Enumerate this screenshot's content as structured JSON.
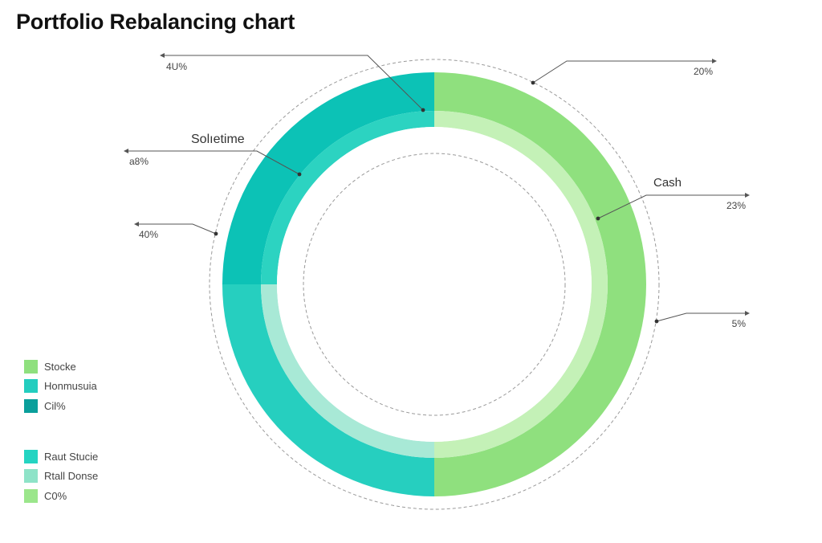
{
  "title": "Portfolio Rebalancing chart",
  "chart_data": {
    "type": "pie",
    "title": "Portfolio Rebalancing chart",
    "style": "donut",
    "outer_ring": {
      "slices": [
        {
          "value": 50,
          "color": "#8fe07e"
        },
        {
          "value": 25,
          "color": "#26cfbf"
        },
        {
          "value": 25,
          "color": "#0cc2b6"
        }
      ]
    },
    "inner_ring": {
      "slices": [
        {
          "value": 50,
          "color": "#c4f1b7"
        },
        {
          "value": 25,
          "color": "#a8e9d6"
        },
        {
          "value": 25,
          "color": "#2cd3c1"
        }
      ]
    },
    "callouts": [
      {
        "id": "left-top",
        "text": "4U%"
      },
      {
        "id": "left-mid",
        "text": "a8%"
      },
      {
        "id": "left-low",
        "text": "40%"
      },
      {
        "id": "right-top",
        "text": "20%"
      },
      {
        "id": "right-mid",
        "text": "23%"
      },
      {
        "id": "right-low",
        "text": "5%"
      }
    ],
    "annotations": [
      {
        "id": "soltime",
        "text": "Solıetime"
      },
      {
        "id": "cash",
        "text": "Cash"
      }
    ],
    "legend": {
      "position": "bottom-left",
      "groups": [
        [
          {
            "label": "Stocke",
            "color": "#8fe07e"
          },
          {
            "label": "Honmusuia",
            "color": "#23cdbf"
          },
          {
            "label": "Cil%",
            "color": "#0a9f9b"
          }
        ],
        [
          {
            "label": "Raut Stucie",
            "color": "#24d4c2"
          },
          {
            "label": "Rtall Donse",
            "color": "#8ee3c8"
          },
          {
            "label": "C0%",
            "color": "#9be68b"
          }
        ]
      ]
    }
  }
}
